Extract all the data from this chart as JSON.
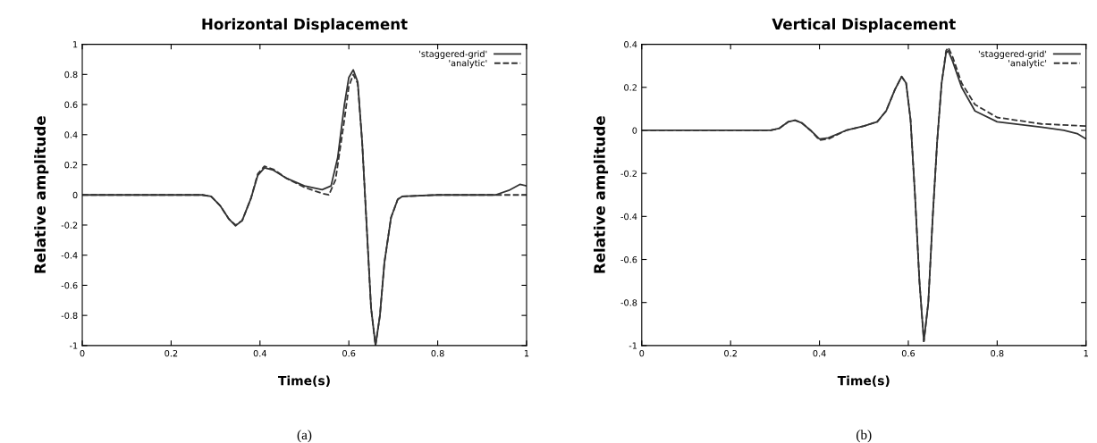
{
  "chart_data": [
    {
      "type": "line",
      "title": "Horizontal Displacement",
      "xlabel": "Time(s)",
      "ylabel": "Relative amplitude",
      "annotations": [
        "(a)"
      ],
      "xlim": [
        0,
        1
      ],
      "xticks": [
        0,
        0.2,
        0.4,
        0.6,
        0.8,
        1
      ],
      "ylim": [
        -1,
        1
      ],
      "yticks": [
        -1,
        -0.8,
        -0.6,
        -0.4,
        -0.2,
        0,
        0.2,
        0.4,
        0.6,
        0.8,
        1
      ],
      "grid": false,
      "legend": "top right",
      "marker": "none",
      "series": [
        {
          "name": "'staggered-grid'",
          "color": "#333333",
          "line_style": "solid",
          "x": [
            0,
            0.27,
            0.29,
            0.31,
            0.33,
            0.345,
            0.36,
            0.38,
            0.395,
            0.41,
            0.43,
            0.46,
            0.5,
            0.54,
            0.56,
            0.575,
            0.59,
            0.6,
            0.61,
            0.62,
            0.63,
            0.64,
            0.65,
            0.66,
            0.67,
            0.68,
            0.695,
            0.71,
            0.72,
            0.8,
            0.93,
            0.96,
            0.985,
            1.0
          ],
          "values": [
            0,
            0,
            -0.01,
            -0.07,
            -0.16,
            -0.205,
            -0.17,
            -0.02,
            0.13,
            0.18,
            0.165,
            0.11,
            0.06,
            0.035,
            0.06,
            0.25,
            0.6,
            0.78,
            0.83,
            0.75,
            0.35,
            -0.2,
            -0.75,
            -1.0,
            -0.8,
            -0.45,
            -0.15,
            -0.03,
            -0.01,
            0,
            0,
            0.03,
            0.07,
            0.06
          ]
        },
        {
          "name": "'analytic'",
          "color": "#333333",
          "line_style": "dashed",
          "x": [
            0,
            0.27,
            0.29,
            0.31,
            0.33,
            0.345,
            0.36,
            0.38,
            0.395,
            0.41,
            0.43,
            0.46,
            0.5,
            0.54,
            0.555,
            0.57,
            0.59,
            0.6,
            0.61,
            0.62,
            0.63,
            0.64,
            0.65,
            0.66,
            0.67,
            0.68,
            0.695,
            0.71,
            0.72,
            0.8,
            0.93,
            1.0
          ],
          "values": [
            0,
            0,
            -0.01,
            -0.07,
            -0.16,
            -0.2,
            -0.17,
            -0.02,
            0.14,
            0.19,
            0.17,
            0.11,
            0.05,
            0.01,
            0.0,
            0.1,
            0.5,
            0.72,
            0.8,
            0.74,
            0.35,
            -0.2,
            -0.75,
            -1.0,
            -0.8,
            -0.45,
            -0.15,
            -0.03,
            -0.01,
            0,
            0,
            0
          ]
        }
      ]
    },
    {
      "type": "line",
      "title": "Vertical Displacement",
      "xlabel": "Time(s)",
      "ylabel": "Relative amplitude",
      "annotations": [
        "(b)"
      ],
      "xlim": [
        0,
        1
      ],
      "xticks": [
        0,
        0.2,
        0.4,
        0.6,
        0.8,
        1
      ],
      "ylim": [
        -1,
        0.4
      ],
      "yticks": [
        -1,
        -0.8,
        -0.6,
        -0.4,
        -0.2,
        0,
        0.2,
        0.4
      ],
      "grid": false,
      "legend": "top right",
      "marker": "none",
      "series": [
        {
          "name": "'staggered-grid'",
          "color": "#333333",
          "line_style": "solid",
          "x": [
            0,
            0.29,
            0.31,
            0.33,
            0.345,
            0.36,
            0.38,
            0.4,
            0.42,
            0.46,
            0.5,
            0.53,
            0.55,
            0.57,
            0.585,
            0.595,
            0.605,
            0.615,
            0.625,
            0.635,
            0.645,
            0.655,
            0.665,
            0.675,
            0.685,
            0.69,
            0.7,
            0.72,
            0.75,
            0.8,
            0.9,
            0.95,
            0.98,
            1.0
          ],
          "values": [
            0,
            0,
            0.01,
            0.04,
            0.047,
            0.035,
            0,
            -0.04,
            -0.035,
            0,
            0.02,
            0.04,
            0.09,
            0.19,
            0.25,
            0.22,
            0.05,
            -0.3,
            -0.7,
            -0.98,
            -0.8,
            -0.4,
            -0.05,
            0.22,
            0.36,
            0.37,
            0.32,
            0.2,
            0.09,
            0.04,
            0.015,
            0.0,
            -0.015,
            -0.04
          ]
        },
        {
          "name": "'analytic'",
          "color": "#333333",
          "line_style": "dashed",
          "x": [
            0,
            0.29,
            0.31,
            0.33,
            0.345,
            0.36,
            0.38,
            0.4,
            0.42,
            0.46,
            0.5,
            0.53,
            0.55,
            0.57,
            0.585,
            0.595,
            0.605,
            0.615,
            0.625,
            0.635,
            0.645,
            0.655,
            0.665,
            0.675,
            0.685,
            0.69,
            0.7,
            0.72,
            0.75,
            0.8,
            0.9,
            1.0
          ],
          "values": [
            0,
            0,
            0.01,
            0.04,
            0.047,
            0.035,
            0,
            -0.045,
            -0.04,
            0,
            0.02,
            0.04,
            0.09,
            0.19,
            0.25,
            0.22,
            0.05,
            -0.3,
            -0.7,
            -0.98,
            -0.8,
            -0.4,
            -0.05,
            0.22,
            0.37,
            0.385,
            0.34,
            0.22,
            0.12,
            0.06,
            0.03,
            0.02
          ]
        }
      ]
    }
  ]
}
